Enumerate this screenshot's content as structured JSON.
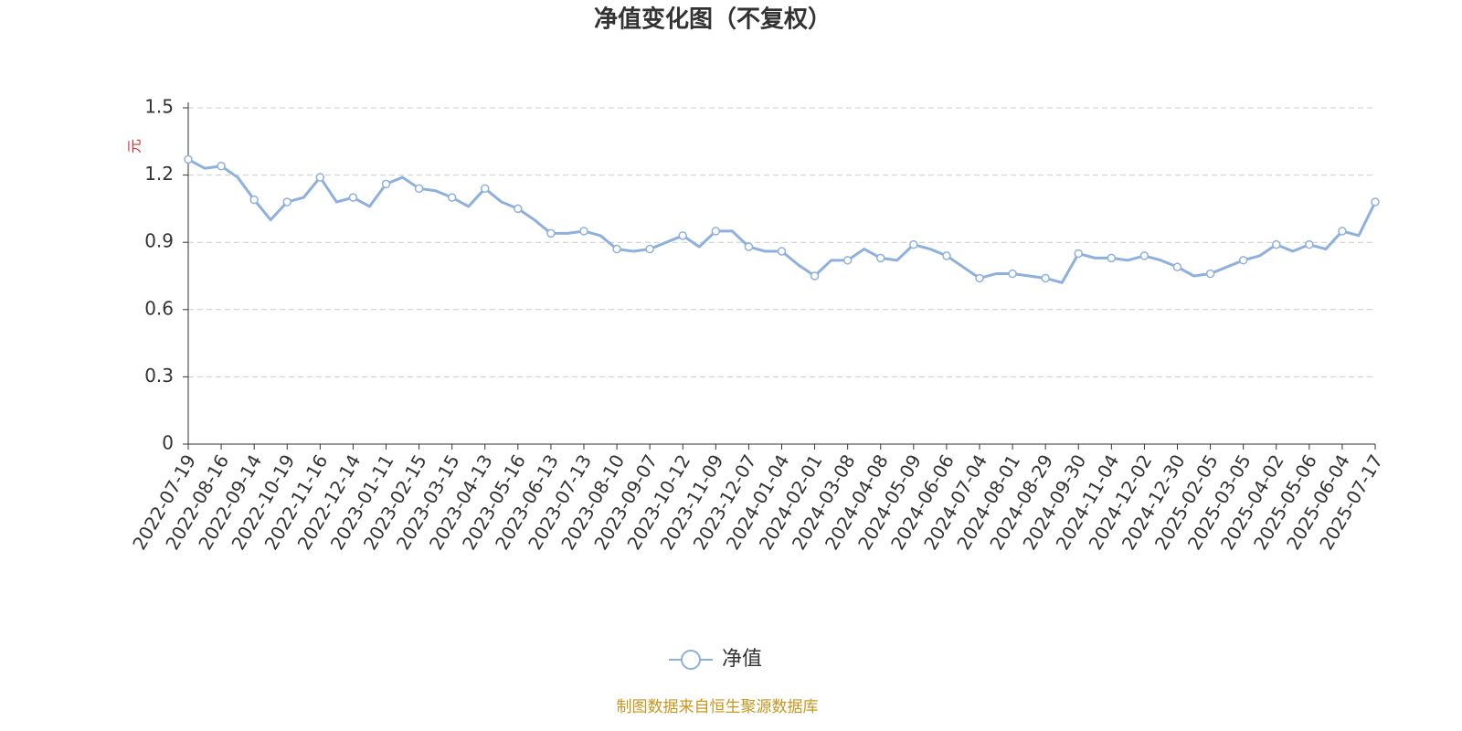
{
  "chart_data": {
    "type": "line",
    "title": "净值变化图（不复权）",
    "y_label": "元",
    "categories": [
      "2022-07-19",
      null,
      "2022-08-16",
      null,
      "2022-09-14",
      null,
      "2022-10-19",
      null,
      "2022-11-16",
      null,
      "2022-12-14",
      null,
      "2023-01-11",
      null,
      "2023-02-15",
      null,
      "2023-03-15",
      null,
      "2023-04-13",
      null,
      "2023-05-16",
      null,
      "2023-06-13",
      null,
      "2023-07-13",
      null,
      "2023-08-10",
      null,
      "2023-09-07",
      null,
      "2023-10-12",
      null,
      "2023-11-09",
      null,
      "2023-12-07",
      null,
      "2024-01-04",
      null,
      "2024-02-01",
      null,
      "2024-03-08",
      null,
      "2024-04-08",
      null,
      "2024-05-09",
      null,
      "2024-06-06",
      null,
      "2024-07-04",
      null,
      "2024-08-01",
      null,
      "2024-08-29",
      null,
      "2024-09-30",
      null,
      "2024-11-04",
      null,
      "2024-12-02",
      null,
      "2024-12-30",
      null,
      "2025-02-05",
      null,
      "2025-03-05",
      null,
      "2025-04-02",
      null,
      "2025-05-06",
      null,
      "2025-06-04",
      null,
      "2025-07-17"
    ],
    "series": [
      {
        "name": "净值",
        "color": "#8eb0de",
        "values": [
          1.27,
          1.23,
          1.24,
          1.19,
          1.09,
          1.0,
          1.08,
          1.1,
          1.19,
          1.08,
          1.1,
          1.06,
          1.16,
          1.19,
          1.14,
          1.13,
          1.1,
          1.06,
          1.14,
          1.08,
          1.05,
          1.0,
          0.94,
          0.94,
          0.95,
          0.93,
          0.87,
          0.86,
          0.87,
          0.9,
          0.93,
          0.88,
          0.95,
          0.95,
          0.88,
          0.86,
          0.86,
          0.8,
          0.75,
          0.82,
          0.82,
          0.87,
          0.83,
          0.82,
          0.89,
          0.87,
          0.84,
          0.79,
          0.74,
          0.76,
          0.76,
          0.75,
          0.74,
          0.72,
          0.85,
          0.83,
          0.83,
          0.82,
          0.84,
          0.82,
          0.79,
          0.75,
          0.76,
          0.79,
          0.82,
          0.84,
          0.89,
          0.86,
          0.89,
          0.87,
          0.95,
          0.93,
          1.08
        ]
      }
    ],
    "ylim": [
      0,
      1.5
    ],
    "yticks": [
      0,
      {
        "value": 0.3,
        "label": "0.3"
      },
      {
        "value": 0.6,
        "label": "0.6"
      },
      {
        "value": 0.9,
        "label": "0.9"
      },
      {
        "value": 1.2,
        "label": "1.2"
      },
      1.5
    ],
    "grid": true,
    "legend": "bottom",
    "source": "制图数据来自恒生聚源数据库"
  }
}
